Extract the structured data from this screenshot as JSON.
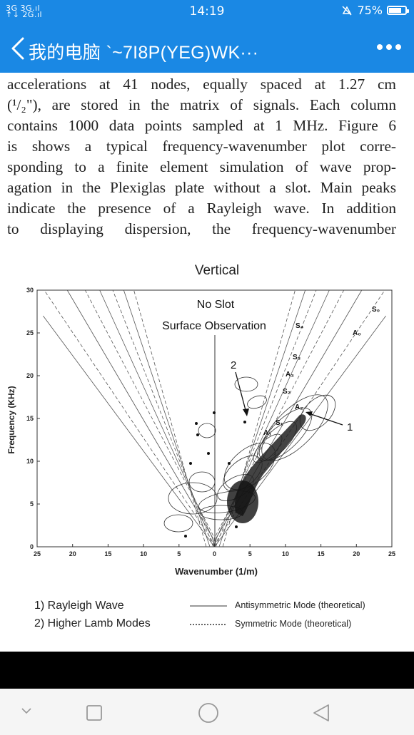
{
  "status_bar": {
    "signal": "3G 3G\n2G",
    "time": "14:19",
    "battery": "75%",
    "battery_level": 0.75
  },
  "title_bar": {
    "title": "我的电脑  `~7I8P(YEG)WK···"
  },
  "document": {
    "lines": [
      "accelerations at 41 nodes, equally spaced at 1.27 cm",
      "(¹/₂\"), are stored in the matrix of signals. Each column",
      "contains 1000 data points sampled at 1 MHz. Figure 6",
      "is shows a typical frequency-wavenumber plot corre-",
      "sponding to a finite element simulation of wave prop-",
      "agation in the Plexiglas plate without a slot. Main peaks",
      "indicate the presence of a Rayleigh wave. In addition",
      "to displaying dispersion, the frequency-wavenumber"
    ]
  },
  "chart_data": {
    "type": "contour",
    "title": "Vertical",
    "annotations": [
      "No Slot",
      "Surface Observation",
      "1",
      "2"
    ],
    "mode_labels": [
      "S₀",
      "A₀",
      "S₄",
      "S₃",
      "A₃",
      "S₂",
      "A₂",
      "S₁",
      "A₁"
    ],
    "xlabel": "Wavenumber (1/m)",
    "ylabel": "Frequency (KHz)",
    "x_ticks": [
      "25",
      "20",
      "15",
      "10",
      "5",
      "0",
      "5",
      "10",
      "15",
      "20",
      "25"
    ],
    "y_ticks": [
      "30",
      "25",
      "20",
      "15",
      "10",
      "5",
      "0"
    ],
    "xlim": [
      -25,
      25
    ],
    "ylim": [
      0,
      30
    ],
    "legend": {
      "left": [
        "1) Rayleigh Wave",
        "2) Higher Lamb Modes"
      ],
      "right": [
        "Antisymmetric Mode (theoretical)",
        "Symmetric Mode (theoretical)"
      ]
    }
  }
}
